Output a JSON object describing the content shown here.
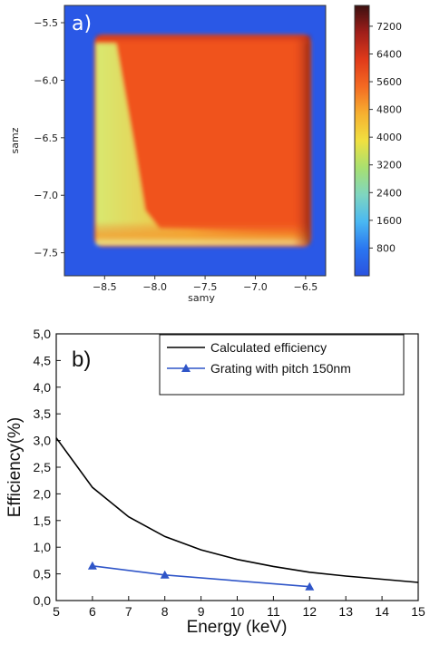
{
  "chart_data": [
    {
      "type": "heatmap",
      "panel_label": "a)",
      "xlabel": "samy",
      "ylabel": "samz",
      "xlim": [
        -8.9,
        -6.3
      ],
      "ylim": [
        -7.7,
        -5.35
      ],
      "xticks": [
        -8.5,
        -8.0,
        -7.5,
        -7.0,
        -6.5
      ],
      "xtick_labels": [
        "−8.5",
        "−8.0",
        "−7.5",
        "−7.0",
        "−6.5"
      ],
      "yticks": [
        -5.5,
        -6.0,
        -6.5,
        -7.0,
        -7.5
      ],
      "ytick_labels": [
        "−5.5",
        "−6.0",
        "−6.5",
        "−7.0",
        "−7.5"
      ],
      "colorbar": {
        "min": 0,
        "max": 7800,
        "ticks": [
          800,
          1600,
          2400,
          3200,
          4000,
          4800,
          5600,
          6400,
          7200
        ],
        "colors": [
          "#2a52e0",
          "#2a76f0",
          "#4ab8f2",
          "#7fd6c0",
          "#a8e070",
          "#f0e040",
          "#f6b030",
          "#f46a22",
          "#e03a1a",
          "#a01e1a",
          "#3c1010"
        ]
      },
      "background_value": 0,
      "square_region": {
        "x": [
          -8.65,
          -6.55
        ],
        "y": [
          -7.5,
          -5.45
        ],
        "dominant_value": 6800,
        "left_edge_value": 4300
      }
    },
    {
      "type": "line",
      "panel_label": "b)",
      "xlabel": "Energy (keV)",
      "ylabel": "Efficiency(%)",
      "xlim": [
        5,
        15
      ],
      "ylim": [
        0,
        5
      ],
      "xticks": [
        5,
        6,
        7,
        8,
        9,
        10,
        11,
        12,
        13,
        14,
        15
      ],
      "xtick_labels": [
        "5",
        "6",
        "7",
        "8",
        "9",
        "10",
        "11",
        "12",
        "13",
        "14",
        "15"
      ],
      "yticks": [
        0,
        0.5,
        1,
        1.5,
        2,
        2.5,
        3,
        3.5,
        4,
        4.5,
        5
      ],
      "ytick_labels": [
        "0,0",
        "0,5",
        "1,0",
        "1,5",
        "2,0",
        "2,5",
        "3,0",
        "3,5",
        "4,0",
        "4,5",
        "5,0"
      ],
      "legend_position": "top-right",
      "series": [
        {
          "name": "Calculated efficiency",
          "color": "#000000",
          "marker": "none",
          "x": [
            5,
            6,
            7,
            8,
            9,
            10,
            11,
            12,
            13,
            14,
            15
          ],
          "y": [
            3.05,
            2.12,
            1.57,
            1.2,
            0.95,
            0.77,
            0.64,
            0.53,
            0.46,
            0.4,
            0.34
          ]
        },
        {
          "name": "Grating with pitch 150nm",
          "color": "#2f55c8",
          "marker": "triangle",
          "x": [
            6,
            8,
            12
          ],
          "y": [
            0.65,
            0.48,
            0.26
          ]
        }
      ]
    }
  ]
}
